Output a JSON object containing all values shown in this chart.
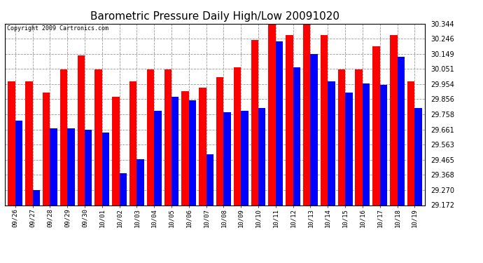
{
  "title": "Barometric Pressure Daily High/Low 20091020",
  "copyright": "Copyright 2009 Cartronics.com",
  "dates": [
    "09/26",
    "09/27",
    "09/28",
    "09/29",
    "09/30",
    "10/01",
    "10/02",
    "10/03",
    "10/04",
    "10/05",
    "10/06",
    "10/07",
    "10/08",
    "10/09",
    "10/10",
    "10/11",
    "10/12",
    "10/13",
    "10/14",
    "10/15",
    "10/16",
    "10/17",
    "10/18",
    "10/19"
  ],
  "highs": [
    29.97,
    29.97,
    29.9,
    30.05,
    30.14,
    30.05,
    29.87,
    29.97,
    30.05,
    30.05,
    29.91,
    29.93,
    30.0,
    30.06,
    30.24,
    30.34,
    30.27,
    30.34,
    30.27,
    30.05,
    30.05,
    30.2,
    30.27,
    29.97
  ],
  "lows": [
    29.72,
    29.27,
    29.67,
    29.67,
    29.66,
    29.64,
    29.38,
    29.47,
    29.78,
    29.87,
    29.85,
    29.5,
    29.77,
    29.78,
    29.8,
    30.23,
    30.06,
    30.15,
    29.97,
    29.9,
    29.96,
    29.95,
    30.13,
    29.8
  ],
  "ymin": 29.172,
  "ymax": 30.344,
  "yticks": [
    29.172,
    29.27,
    29.368,
    29.465,
    29.563,
    29.661,
    29.758,
    29.856,
    29.954,
    30.051,
    30.149,
    30.246,
    30.344
  ],
  "high_color": "#ff0000",
  "low_color": "#0000ff",
  "bg_color": "#ffffff",
  "grid_color": "#999999",
  "title_fontsize": 11,
  "bar_width": 0.42
}
